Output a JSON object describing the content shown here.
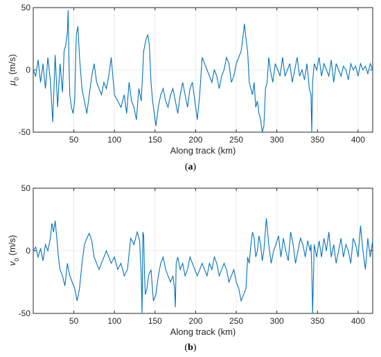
{
  "chart_data": [
    {
      "type": "line",
      "ylabel_symbol": "μ",
      "ylabel_sub": "0",
      "ylabel_unit": " (m/s)",
      "xlabel": "Along track (km)",
      "caption_open": "(",
      "caption_letter": "a",
      "caption_close": ")",
      "xlim": [
        0,
        418
      ],
      "ylim": [
        -50,
        50
      ],
      "xticks": [
        50,
        100,
        150,
        200,
        250,
        300,
        350,
        400
      ],
      "xtick_labels": [
        "50",
        "100",
        "150",
        "200",
        "250",
        "300",
        "350",
        "400"
      ],
      "yticks": [
        50,
        0,
        -50
      ],
      "ytick_labels": [
        "50",
        "0",
        "-50"
      ],
      "grid": true,
      "color": "#0072BD",
      "series": [
        {
          "x": [
            0,
            3,
            6,
            9,
            12,
            15,
            18,
            21,
            24,
            27,
            30,
            33,
            36,
            38,
            40,
            42,
            43,
            44,
            45,
            47,
            49,
            51,
            53,
            55,
            57,
            60,
            63,
            66,
            69,
            72,
            75,
            78,
            81,
            84,
            87,
            90,
            93,
            96,
            100,
            104,
            108,
            112,
            115,
            118,
            121,
            124,
            127,
            130,
            133,
            136,
            139,
            141,
            143,
            145,
            147,
            149,
            151,
            154,
            157,
            160,
            163,
            166,
            169,
            172,
            175,
            178,
            181,
            184,
            187,
            190,
            193,
            196,
            199,
            202,
            205,
            208,
            211,
            214,
            217,
            220,
            223,
            226,
            229,
            232,
            235,
            238,
            241,
            244,
            247,
            250,
            253,
            256,
            258,
            260,
            262,
            264,
            266,
            268,
            270,
            272,
            274,
            276,
            278,
            280,
            282,
            284,
            286,
            288,
            290,
            292,
            295,
            298,
            301,
            304,
            307,
            310,
            313,
            316,
            319,
            322,
            325,
            328,
            331,
            334,
            337,
            340,
            342,
            343,
            344,
            346,
            349,
            352,
            355,
            358,
            361,
            364,
            367,
            370,
            373,
            376,
            379,
            382,
            385,
            388,
            391,
            394,
            397,
            400,
            403,
            406,
            409,
            412,
            415,
            418
          ],
          "y": [
            0,
            -5,
            8,
            -10,
            5,
            -15,
            10,
            -8,
            -42,
            12,
            -30,
            5,
            -18,
            15,
            20,
            30,
            48,
            5,
            -20,
            -30,
            -35,
            -25,
            28,
            35,
            10,
            -15,
            -25,
            -35,
            -20,
            -5,
            5,
            -10,
            -15,
            -20,
            -10,
            -15,
            -5,
            10,
            -20,
            -25,
            -30,
            -20,
            -35,
            -10,
            -25,
            -30,
            -40,
            -15,
            -25,
            15,
            25,
            28,
            20,
            -10,
            -25,
            -35,
            -45,
            -30,
            -20,
            -15,
            -25,
            -30,
            -20,
            -15,
            -25,
            -35,
            -20,
            -10,
            -20,
            -30,
            -15,
            -10,
            -25,
            -40,
            -20,
            10,
            5,
            0,
            -5,
            -10,
            0,
            -5,
            -15,
            -5,
            0,
            10,
            5,
            -10,
            -5,
            5,
            10,
            15,
            25,
            37,
            25,
            15,
            -10,
            -15,
            -20,
            -10,
            -30,
            -25,
            -35,
            -40,
            -50,
            -45,
            -15,
            -10,
            10,
            0,
            -10,
            5,
            0,
            -5,
            10,
            -5,
            0,
            5,
            -10,
            0,
            10,
            -5,
            0,
            -8,
            5,
            -15,
            -20,
            -50,
            -10,
            5,
            0,
            10,
            -5,
            5,
            0,
            -5,
            8,
            -10,
            5,
            0,
            -5,
            3,
            0,
            -8,
            5,
            0,
            3,
            -5,
            5,
            0,
            3,
            -3,
            5,
            0
          ]
        }
      ]
    },
    {
      "type": "line",
      "ylabel_symbol": "v",
      "ylabel_sub": "0",
      "ylabel_unit": " (m/s)",
      "xlabel": "Along track (km)",
      "caption_open": "(",
      "caption_letter": "b",
      "caption_close": ")",
      "xlim": [
        0,
        418
      ],
      "ylim": [
        -50,
        50
      ],
      "xticks": [
        50,
        100,
        150,
        200,
        250,
        300,
        350,
        400
      ],
      "xtick_labels": [
        "50",
        "100",
        "150",
        "200",
        "250",
        "300",
        "350",
        "400"
      ],
      "yticks": [
        50,
        0,
        -50
      ],
      "ytick_labels": [
        "50",
        "0",
        "-50"
      ],
      "grid": true,
      "color": "#0072BD",
      "series": [
        {
          "x": [
            0,
            3,
            6,
            9,
            12,
            15,
            18,
            21,
            23,
            25,
            27,
            29,
            31,
            33,
            36,
            39,
            42,
            45,
            48,
            51,
            54,
            57,
            60,
            63,
            66,
            69,
            72,
            75,
            78,
            81,
            84,
            87,
            90,
            93,
            96,
            100,
            104,
            108,
            112,
            116,
            120,
            124,
            128,
            131,
            133,
            134,
            135,
            136,
            137,
            138,
            140,
            142,
            145,
            148,
            151,
            154,
            157,
            160,
            163,
            166,
            169,
            172,
            174,
            175,
            176,
            178,
            181,
            184,
            187,
            190,
            193,
            196,
            199,
            202,
            205,
            208,
            211,
            214,
            217,
            220,
            223,
            226,
            229,
            232,
            235,
            238,
            241,
            244,
            247,
            250,
            253,
            256,
            259,
            262,
            264,
            266,
            268,
            270,
            272,
            274,
            276,
            278,
            280,
            282,
            284,
            287,
            290,
            293,
            296,
            299,
            302,
            305,
            308,
            311,
            314,
            317,
            320,
            323,
            326,
            329,
            332,
            335,
            338,
            341,
            342,
            343,
            344,
            346,
            349,
            352,
            355,
            358,
            361,
            364,
            367,
            370,
            373,
            376,
            379,
            382,
            385,
            388,
            391,
            394,
            397,
            400,
            403,
            406,
            409,
            412,
            415,
            418
          ],
          "y": [
            0,
            3,
            -5,
            2,
            -8,
            5,
            0,
            10,
            22,
            15,
            24,
            10,
            -5,
            -15,
            -20,
            -28,
            -10,
            -20,
            -25,
            -30,
            -40,
            -30,
            -10,
            5,
            10,
            14,
            8,
            -5,
            -10,
            -15,
            -10,
            -5,
            0,
            -5,
            -10,
            -5,
            -15,
            -10,
            -20,
            -15,
            10,
            5,
            15,
            8,
            -20,
            -50,
            15,
            12,
            -20,
            -35,
            -30,
            -20,
            -15,
            -40,
            -35,
            -20,
            -10,
            -5,
            -15,
            -20,
            -25,
            -20,
            -30,
            -45,
            -10,
            -5,
            -15,
            -10,
            -20,
            -15,
            -5,
            -10,
            -15,
            -20,
            -15,
            -10,
            -15,
            -20,
            -10,
            -15,
            -5,
            -10,
            -20,
            -15,
            -10,
            -15,
            -25,
            -20,
            -15,
            -25,
            -30,
            -40,
            -35,
            -30,
            -5,
            -10,
            5,
            15,
            10,
            -5,
            0,
            12,
            5,
            -8,
            0,
            26,
            5,
            -10,
            0,
            5,
            12,
            -5,
            10,
            0,
            -8,
            15,
            5,
            -10,
            0,
            10,
            5,
            -5,
            8,
            0,
            5,
            -15,
            -50,
            5,
            -5,
            8,
            -5,
            10,
            0,
            15,
            -5,
            5,
            -10,
            0,
            10,
            -5,
            5,
            0,
            -10,
            10,
            5,
            -5,
            20,
            0,
            -15,
            10,
            -5,
            8
          ]
        }
      ]
    }
  ]
}
